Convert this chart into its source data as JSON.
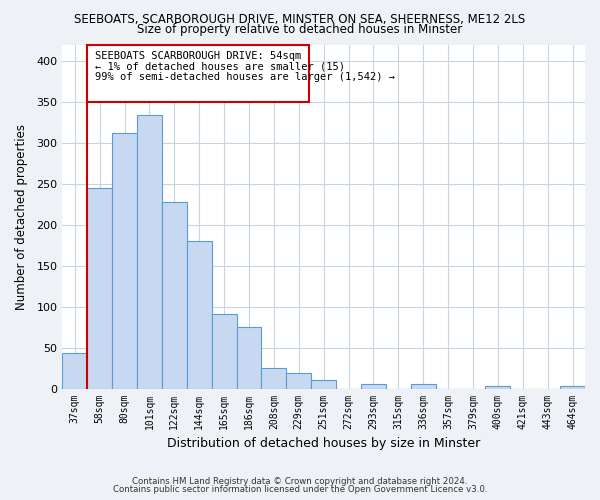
{
  "title1": "SEEBOATS, SCARBOROUGH DRIVE, MINSTER ON SEA, SHEERNESS, ME12 2LS",
  "title2": "Size of property relative to detached houses in Minster",
  "xlabel": "Distribution of detached houses by size in Minster",
  "ylabel": "Number of detached properties",
  "bar_labels": [
    "37sqm",
    "58sqm",
    "80sqm",
    "101sqm",
    "122sqm",
    "144sqm",
    "165sqm",
    "186sqm",
    "208sqm",
    "229sqm",
    "251sqm",
    "272sqm",
    "293sqm",
    "315sqm",
    "336sqm",
    "357sqm",
    "379sqm",
    "400sqm",
    "421sqm",
    "443sqm",
    "464sqm"
  ],
  "bar_values": [
    43,
    245,
    313,
    335,
    228,
    180,
    91,
    75,
    25,
    19,
    10,
    0,
    5,
    0,
    6,
    0,
    0,
    3,
    0,
    0,
    3
  ],
  "bar_color": "#c6d9f0",
  "bar_edge_color": "#5b9bd5",
  "ylim": [
    0,
    420
  ],
  "yticks": [
    0,
    50,
    100,
    150,
    200,
    250,
    300,
    350,
    400
  ],
  "annotation_title": "SEEBOATS SCARBOROUGH DRIVE: 54sqm",
  "annotation_line1": "← 1% of detached houses are smaller (15)",
  "annotation_line2": "99% of semi-detached houses are larger (1,542) →",
  "footer1": "Contains HM Land Registry data © Crown copyright and database right 2024.",
  "footer2": "Contains public sector information licensed under the Open Government Licence v3.0.",
  "background_color": "#eef2f7",
  "plot_bg_color": "#ffffff",
  "grid_color": "#c8d4e0",
  "red_line_color": "#cc0000",
  "box_color": "#cc0000"
}
